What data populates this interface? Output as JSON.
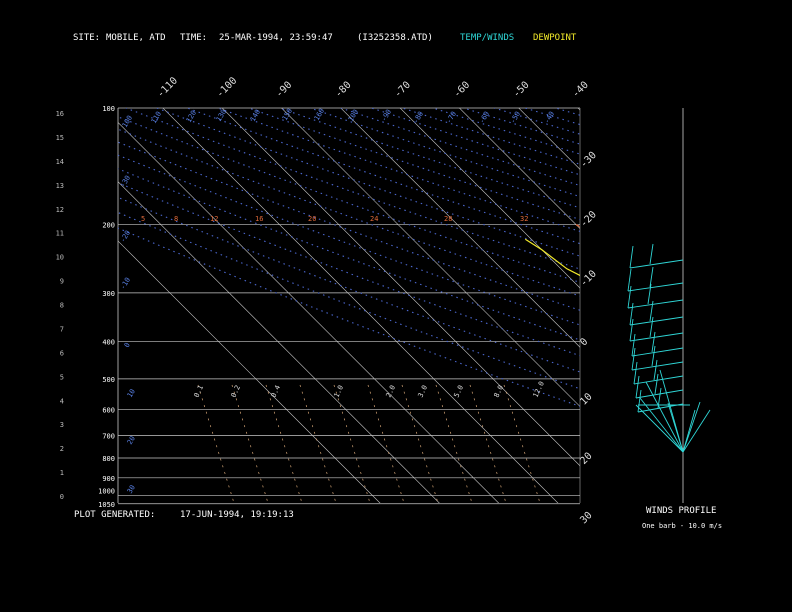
{
  "header": {
    "site_label": "SITE:",
    "site_value": "MOBILE, ATD",
    "time_label": "TIME:",
    "time_value": "25-MAR-1994, 23:59:47",
    "file": "(I3252358.ATD)",
    "legend_temp": "TEMP/WINDS",
    "legend_dew": "DEWPOINT"
  },
  "footer": {
    "generated_label": "PLOT GENERATED:",
    "generated_value": "17-JUN-1994, 19:19:13",
    "winds_title": "WINDS PROFILE",
    "barb_note": "One barb - 10.0 m/s"
  },
  "colors": {
    "temp": "#2fd6d6",
    "dew": "#f2ea2a",
    "grid": "#c8c8c8",
    "isotherm_label": "#dddddd",
    "dry_adiabat": "#4a66cc",
    "dry_adiabat_label": "#5a82e8",
    "moist_adiabat": "#e06a3a",
    "mixing_ratio": "#d9a878",
    "height_label": "#bbbbbb"
  },
  "chart_data": {
    "type": "line",
    "subtype": "skew-T log-P sounding",
    "y_axis_pressure_mb": [
      100,
      200,
      300,
      400,
      500,
      600,
      700,
      800,
      900,
      1000,
      1050
    ],
    "y_axis_pressure_labels": [
      "100",
      "200",
      "300",
      "400",
      "500",
      "600",
      "700",
      "800",
      "900",
      "1000",
      "1050"
    ],
    "left_height_labels": [
      "16",
      "15",
      "14",
      "13",
      "12",
      "11",
      "10",
      "9",
      "8",
      "7",
      "6",
      "5",
      "4",
      "3",
      "2",
      "1",
      "0"
    ],
    "isotherm_top_labels": [
      "-110",
      "-100",
      "-90",
      "-80",
      "-70",
      "-60",
      "-50",
      "-40"
    ],
    "isotherm_right_labels": [
      "-30",
      "-20",
      "-10",
      "0",
      "10",
      "20",
      "30"
    ],
    "dry_adiabat_labels": [
      "20",
      "10",
      "0",
      "-10",
      "-20",
      "-30",
      "-40",
      "-50",
      "-60",
      "-70",
      "-80",
      "-90",
      "100",
      "110",
      "120",
      "130",
      "140",
      "150",
      "160"
    ],
    "mixing_ratio_labels": [
      "0.1",
      "0.2",
      "0.4",
      "1.0",
      "2.0",
      "3.0",
      "5.0",
      "8.0",
      "12.0"
    ],
    "moist_adiabat_labels": [
      "5",
      "8",
      "12",
      "16",
      "20",
      "24",
      "28",
      "32"
    ],
    "series": [
      {
        "name": "TEMP/WINDS",
        "points": [
          [
            1050,
            14
          ],
          [
            835,
            10
          ],
          [
            814,
            4
          ],
          [
            775,
            2
          ],
          [
            730,
            0
          ],
          [
            655,
            -6
          ],
          [
            600,
            -10
          ],
          [
            560,
            -14
          ],
          [
            506,
            -18
          ],
          [
            460,
            -22
          ],
          [
            440,
            -25
          ],
          [
            405,
            -30
          ],
          [
            370,
            -35
          ],
          [
            335,
            -42
          ],
          [
            300,
            -49
          ],
          [
            290,
            -50
          ],
          [
            260,
            -51
          ],
          [
            247,
            -53
          ],
          [
            230,
            -55
          ],
          [
            218,
            -56
          ],
          [
            210,
            -55
          ]
        ]
      },
      {
        "name": "DEWPOINT",
        "points": [
          [
            840,
            10
          ],
          [
            840,
            4
          ],
          [
            820,
            1
          ],
          [
            770,
            -1
          ],
          [
            720,
            -2
          ],
          [
            660,
            -5
          ],
          [
            590,
            -9
          ],
          [
            545,
            -14
          ],
          [
            500,
            -24
          ],
          [
            478,
            -34
          ],
          [
            462,
            -42
          ],
          [
            458,
            -46
          ],
          [
            450,
            -45
          ],
          [
            420,
            -42
          ],
          [
            380,
            -43
          ],
          [
            350,
            -49
          ],
          [
            320,
            -58
          ],
          [
            300,
            -64
          ],
          [
            290,
            -66
          ],
          [
            260,
            -69
          ],
          [
            232,
            -70
          ],
          [
            218,
            -71
          ]
        ]
      }
    ]
  }
}
